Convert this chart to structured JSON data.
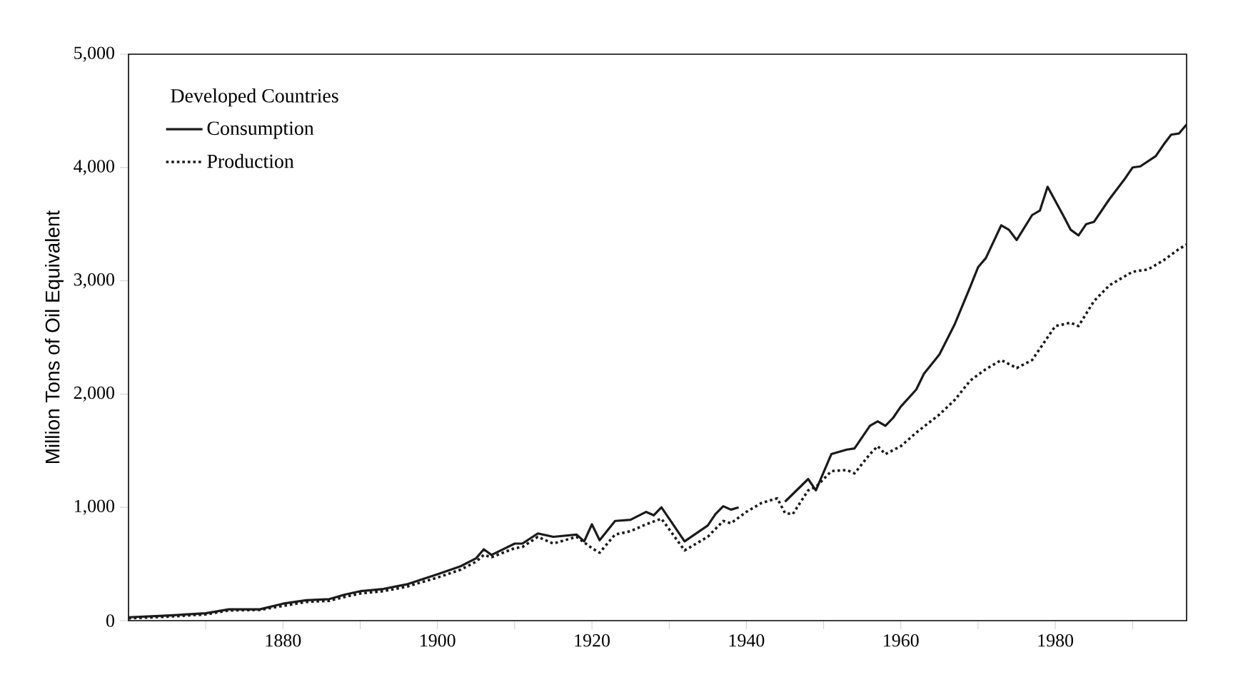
{
  "chart_data": {
    "type": "line",
    "ylabel": "Million Tons of Oil Equivalent",
    "legend_title": "Developed Countries",
    "legend": "top left",
    "xlim": [
      1860,
      1997
    ],
    "ylim": [
      0,
      5000
    ],
    "xticks": [
      {
        "value": 1870,
        "label": null
      },
      1880,
      {
        "value": 1890,
        "label": null
      },
      1900,
      {
        "value": 1910,
        "label": null
      },
      1920,
      {
        "value": 1930,
        "label": null
      },
      1940,
      {
        "value": 1950,
        "label": null
      },
      1960,
      {
        "value": 1970,
        "label": null
      },
      1980,
      {
        "value": 1990,
        "label": null
      }
    ],
    "yticks": [
      0,
      {
        "value": 1000,
        "label": "1,000"
      },
      {
        "value": 2000,
        "label": "2,000"
      },
      {
        "value": 3000,
        "label": "3,000"
      },
      {
        "value": 4000,
        "label": "4,000"
      },
      {
        "value": 5000,
        "label": "5,000"
      }
    ],
    "series": [
      {
        "name": "Consumption",
        "color": "#1a1a1a",
        "line_style": "solid",
        "x": [
          1860,
          1865,
          1870,
          1873,
          1877,
          1880,
          1883,
          1886,
          1888,
          1890,
          1893,
          1896,
          1900,
          1903,
          1905,
          1906,
          1907,
          1910,
          1911,
          1913,
          1915,
          1918,
          1919,
          1920,
          1921,
          1923,
          1925,
          1927,
          1928,
          1929,
          1932,
          1935,
          1936,
          1937,
          1938,
          1939,
          1942,
          1945,
          1948,
          1949,
          1951,
          1953,
          1954,
          1956,
          1957,
          1958,
          1959,
          1960,
          1962,
          1963,
          1965,
          1967,
          1969,
          1970,
          1971,
          1973,
          1974,
          1975,
          1977,
          1978,
          1979,
          1981,
          1982,
          1983,
          1984,
          1985,
          1987,
          1989,
          1990,
          1991,
          1993,
          1994,
          1995,
          1996,
          1997
        ],
        "values": [
          30,
          45,
          65,
          100,
          100,
          150,
          180,
          190,
          230,
          260,
          280,
          320,
          410,
          480,
          550,
          630,
          580,
          680,
          680,
          770,
          740,
          760,
          700,
          850,
          710,
          880,
          890,
          960,
          930,
          1000,
          700,
          840,
          940,
          1010,
          980,
          1000,
          null,
          1050,
          1250,
          1150,
          1470,
          1510,
          1520,
          1720,
          1760,
          1720,
          1790,
          1890,
          2040,
          2180,
          2350,
          2620,
          2950,
          3120,
          3200,
          3490,
          3450,
          3360,
          3580,
          3620,
          3830,
          3580,
          3450,
          3400,
          3500,
          3520,
          3720,
          3900,
          4000,
          4010,
          4100,
          4200,
          4290,
          4300,
          4380
        ]
      },
      {
        "name": "Production",
        "color": "#1a1a1a",
        "line_style": "dotted",
        "x": [
          1860,
          1865,
          1870,
          1873,
          1877,
          1880,
          1883,
          1886,
          1888,
          1890,
          1893,
          1896,
          1900,
          1903,
          1905,
          1906,
          1907,
          1910,
          1911,
          1913,
          1915,
          1918,
          1920,
          1921,
          1923,
          1925,
          1927,
          1929,
          1932,
          1935,
          1937,
          1938,
          1940,
          1942,
          1944,
          1945,
          1946,
          1948,
          1949,
          1951,
          1953,
          1954,
          1956,
          1957,
          1958,
          1960,
          1962,
          1965,
          1967,
          1969,
          1971,
          1973,
          1975,
          1977,
          1978,
          1980,
          1982,
          1983,
          1985,
          1987,
          1989,
          1990,
          1992,
          1994,
          1996,
          1997
        ],
        "values": [
          20,
          35,
          55,
          90,
          95,
          130,
          165,
          175,
          210,
          240,
          260,
          300,
          380,
          450,
          520,
          580,
          560,
          640,
          650,
          740,
          680,
          740,
          640,
          600,
          760,
          790,
          850,
          900,
          620,
          740,
          880,
          860,
          960,
          1040,
          1080,
          950,
          940,
          1150,
          1180,
          1320,
          1330,
          1300,
          1470,
          1540,
          1470,
          1540,
          1660,
          1820,
          1950,
          2120,
          2220,
          2300,
          2230,
          2300,
          2400,
          2600,
          2630,
          2600,
          2820,
          2960,
          3040,
          3080,
          3100,
          3180,
          3280,
          3320
        ]
      }
    ]
  }
}
